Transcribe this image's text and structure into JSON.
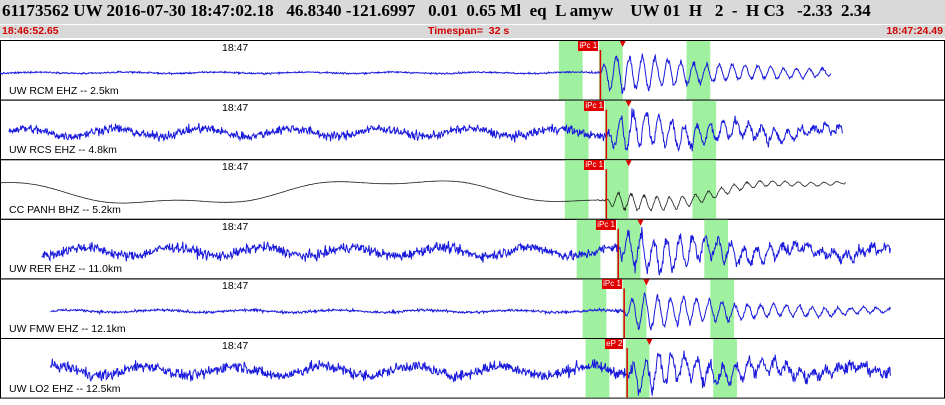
{
  "header": {
    "summary": "61173562 UW 2016-07-30 18:47:02.18   46.8340 -121.6997   0.01  0.65 Ml  eq  L amyw    UW 01  H   2  -  H C3   -2.33  2.34",
    "start_time": "18:46:52.65",
    "timespan": "Timespan=  32 s",
    "end_time": "18:47:24.49"
  },
  "colors": {
    "trace": "#1a1adc",
    "broadband_trace": "#202020",
    "pick": "#e00000",
    "window": "#9ff09f",
    "header_bg": "#d9d9d9",
    "sub_text": "#d00000"
  },
  "panels": [
    {
      "label": "UW RCM EHZ -- 2.5km",
      "minute": "18:47",
      "pick": "iPc 1",
      "arrival_s": 10.7,
      "amp": 1.0,
      "onset_amp": 0.55,
      "noise": 0.05,
      "baseline": 0,
      "end_s": 28.0,
      "start_s": 0.0,
      "color": "trace"
    },
    {
      "label": "UW RCS EHZ -- 4.8km",
      "minute": "18:47",
      "pick": "iPc 1",
      "arrival_s": 10.9,
      "amp": 1.0,
      "onset_amp": 0.5,
      "noise": 0.28,
      "baseline": 0,
      "end_s": 28.4,
      "start_s": 0.3,
      "color": "trace"
    },
    {
      "label": "CC PANH BHZ -- 5.2km",
      "minute": "18:47",
      "pick": "iPc 1",
      "arrival_s": 10.9,
      "amp": 0.45,
      "onset_amp": 0.25,
      "noise": 0.01,
      "baseline": 1,
      "end_s": 28.5,
      "start_s": 0.0,
      "color": "broadband_trace"
    },
    {
      "label": "UW RER EHZ -- 11.0km",
      "minute": "18:47",
      "pick": "iPc 1",
      "arrival_s": 11.3,
      "amp": 1.0,
      "onset_amp": 0.45,
      "noise": 0.32,
      "baseline": 0,
      "end_s": 30.0,
      "start_s": 1.4,
      "color": "trace"
    },
    {
      "label": "UW FMW EHZ -- 12.1km",
      "minute": "18:47",
      "pick": "iPc 1",
      "arrival_s": 11.5,
      "amp": 0.9,
      "onset_amp": 0.4,
      "noise": 0.08,
      "baseline": 0,
      "end_s": 30.0,
      "start_s": 1.7,
      "color": "trace"
    },
    {
      "label": "UW LO2 EHZ -- 12.5km",
      "minute": "18:47",
      "pick": "eP 2",
      "arrival_s": 11.6,
      "amp": 0.95,
      "onset_amp": 0.3,
      "noise": 0.35,
      "baseline": 0,
      "end_s": 30.0,
      "start_s": 1.7,
      "color": "trace"
    }
  ]
}
